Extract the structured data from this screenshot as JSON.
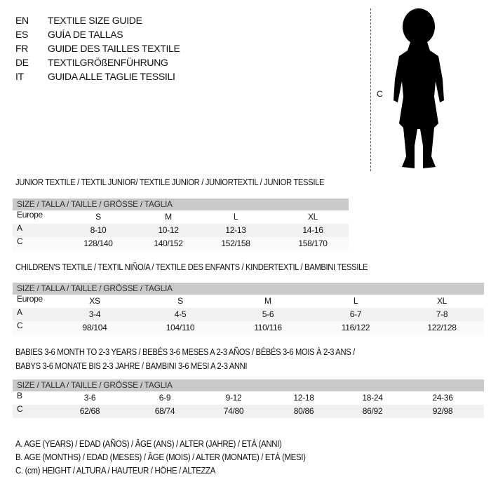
{
  "languages": [
    {
      "code": "EN",
      "title": "TEXTILE SIZE GUIDE"
    },
    {
      "code": "ES",
      "title": "GUÍA DE TALLAS"
    },
    {
      "code": "FR",
      "title": "GUIDE DES TAILLES TEXTILE"
    },
    {
      "code": "DE",
      "title": "TEXTILGRÖßENFÜHRUNG"
    },
    {
      "code": "IT",
      "title": "GUIDA ALLE TAGLIE TESSILI"
    }
  ],
  "figure": {
    "measure_label": "C"
  },
  "junior": {
    "title": "JUNIOR TEXTILE / TEXTIL JUNIOR/ TEXTILE JUNIOR / JUNIORTEXTIL / JUNIOR TESSILE",
    "header": "SIZE / TALLA / TAILLE / GRÖSSE / TAGLIA",
    "rows": [
      {
        "label": "Europe",
        "values": [
          "S",
          "M",
          "L",
          "XL"
        ]
      },
      {
        "label": "A",
        "values": [
          "8-10",
          "10-12",
          "12-13",
          "14-16"
        ]
      },
      {
        "label": "C",
        "values": [
          "128/140",
          "140/152",
          "152/158",
          "158/170"
        ]
      }
    ]
  },
  "children": {
    "title": "CHILDREN'S TEXTILE / TEXTIL NIÑO/A / TEXTILE DES ENFANTS / KINDERTEXTIL / BAMBINI TESSILE",
    "header": "SIZE / TALLA / TAILLE / GRÖSSE / TAGLIA",
    "rows": [
      {
        "label": "Europe",
        "values": [
          "XS",
          "S",
          "M",
          "L",
          "XL"
        ]
      },
      {
        "label": "A",
        "values": [
          "3-4",
          "4-5",
          "5-6",
          "6-7",
          "7-8"
        ]
      },
      {
        "label": "C",
        "values": [
          "98/104",
          "104/110",
          "110/116",
          "116/122",
          "122/128"
        ]
      }
    ]
  },
  "babies": {
    "title_line1": "BABIES 3-6 MONTH TO 2-3 YEARS / BEBÉS 3-6 MESES A 2-3 AÑOS / BÉBÉS 3-6 MOIS À 2-3 ANS /",
    "title_line2": "BABYS 3-6 MONATE BIS 2-3 JAHRE / BAMBINI 3-6 MESI A 2-3 ANNI",
    "header": "SIZE / TALLA / TAILLE / GRÖSSE / TAGLIA",
    "rows": [
      {
        "label": "B",
        "values": [
          "3-6",
          "6-9",
          "9-12",
          "12-18",
          "18-24",
          "24-36"
        ]
      },
      {
        "label": "C",
        "values": [
          "62/68",
          "68/74",
          "74/80",
          "80/86",
          "86/92",
          "92/98"
        ]
      }
    ]
  },
  "legend": [
    "A. AGE (YEARS) / EDAD (AÑOS) / ÂGE (ANS) / ALTER (JAHRE) / ETÀ (ANNI)",
    "B. AGE (MONTHS) / EDAD (MESES) / ÂGE (MOIS) / ALTER (MONATE) / ETÀ (MESI)",
    "C. (cm) HEIGHT / ALTURA / HAUTEUR / HÖHE / ALTEZZA"
  ]
}
